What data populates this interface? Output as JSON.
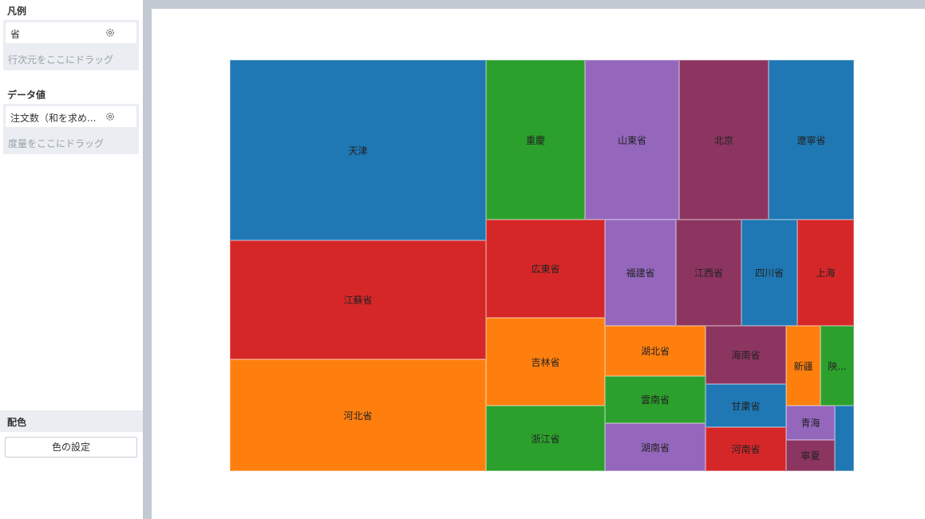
{
  "legend_section": {
    "title": "凡例",
    "field": "省",
    "hint": "行次元をここにドラッグ"
  },
  "value_section": {
    "title": "データ値",
    "field": "注文数（和を求め...",
    "hint": "度量をここにドラッグ"
  },
  "color_section": {
    "title": "配色",
    "button": "色の設定"
  },
  "icons": {
    "field_settings": "gear-icon"
  },
  "colors": {
    "blue": "#1f77b4",
    "red": "#d62728",
    "orange": "#ff7f0e",
    "green": "#2ca02c",
    "purple": "#9467bd",
    "maroon": "#8c3560"
  },
  "chart_data": {
    "type": "treemap",
    "tiles": [
      {
        "label": "天津",
        "color": "blue"
      },
      {
        "label": "江蘇省",
        "color": "red"
      },
      {
        "label": "河北省",
        "color": "orange"
      },
      {
        "label": "重慶",
        "color": "green"
      },
      {
        "label": "山東省",
        "color": "purple"
      },
      {
        "label": "北京",
        "color": "maroon"
      },
      {
        "label": "遼寧省",
        "color": "blue"
      },
      {
        "label": "広東省",
        "color": "red"
      },
      {
        "label": "福建省",
        "color": "purple"
      },
      {
        "label": "江西省",
        "color": "maroon"
      },
      {
        "label": "四川省",
        "color": "blue"
      },
      {
        "label": "上海",
        "color": "red"
      },
      {
        "label": "吉林省",
        "color": "orange"
      },
      {
        "label": "浙江省",
        "color": "green"
      },
      {
        "label": "湖北省",
        "color": "orange"
      },
      {
        "label": "雲南省",
        "color": "green"
      },
      {
        "label": "湖南省",
        "color": "purple"
      },
      {
        "label": "海南省",
        "color": "maroon"
      },
      {
        "label": "甘粛省",
        "color": "blue"
      },
      {
        "label": "河南省",
        "color": "red"
      },
      {
        "label": "新疆",
        "color": "orange"
      },
      {
        "label": "陝...",
        "color": "green"
      },
      {
        "label": "青海",
        "color": "purple"
      },
      {
        "label": "寧夏",
        "color": "maroon"
      },
      {
        "label": "",
        "color": "blue"
      }
    ]
  }
}
